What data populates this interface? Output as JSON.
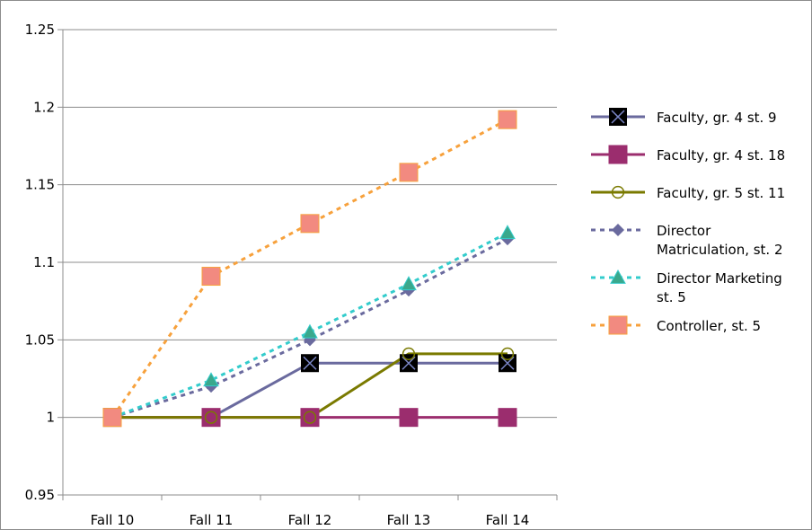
{
  "chart_data": {
    "type": "line",
    "categories": [
      "Fall 10",
      "Fall 11",
      "Fall 12",
      "Fall 13",
      "Fall 14"
    ],
    "ylim": [
      0.95,
      1.25
    ],
    "yticks": [
      "0.95",
      "1",
      "1.05",
      "1.1",
      "1.15",
      "1.2",
      "1.25"
    ],
    "ytick_values": [
      0.95,
      1.0,
      1.05,
      1.1,
      1.15,
      1.2,
      1.25
    ],
    "grid": "horizontal",
    "legend_position": "right",
    "series": [
      {
        "name": "Faculty, gr. 4 st. 9",
        "legend_lines": [
          "Faculty, gr. 4 st. 9"
        ],
        "values": [
          1.0,
          1.0,
          1.035,
          1.035,
          1.035
        ],
        "color": "#6a6a9e",
        "dash": "solid",
        "marker": "x-square",
        "marker_color": "#000000"
      },
      {
        "name": "Faculty, gr. 4 st. 18",
        "legend_lines": [
          "Faculty, gr. 4 st. 18"
        ],
        "values": [
          1.0,
          1.0,
          1.0,
          1.0,
          1.0
        ],
        "color": "#9b2d6e",
        "dash": "solid",
        "marker": "square",
        "marker_color": "#9b2d6e"
      },
      {
        "name": "Faculty, gr. 5 st. 11",
        "legend_lines": [
          "Faculty, gr. 5 st. 11"
        ],
        "values": [
          1.0,
          1.0,
          1.0,
          1.041,
          1.041
        ],
        "color": "#7a7a00",
        "dash": "solid",
        "marker": "circle-open",
        "marker_color": "#7a7a00"
      },
      {
        "name": "Director Matriculation, st. 2",
        "legend_lines": [
          "Director",
          "Matriculation, st. 2"
        ],
        "values": [
          1.0,
          1.02,
          1.05,
          1.082,
          1.115
        ],
        "color": "#6a6a9e",
        "dash": "dotted",
        "marker": "diamond",
        "marker_color": "#6a6a9e"
      },
      {
        "name": "Director Marketing st. 5",
        "legend_lines": [
          "Director Marketing",
          "st. 5"
        ],
        "values": [
          1.0,
          1.024,
          1.055,
          1.086,
          1.119
        ],
        "color": "#33cccc",
        "dash": "dotted",
        "marker": "triangle",
        "marker_color": "#3aa88c"
      },
      {
        "name": "Controller, st. 5",
        "legend_lines": [
          "Controller, st. 5"
        ],
        "values": [
          1.0,
          1.091,
          1.125,
          1.158,
          1.192
        ],
        "color": "#f7a13c",
        "dash": "dotted",
        "marker": "square",
        "marker_color": "#f28a80"
      }
    ]
  }
}
